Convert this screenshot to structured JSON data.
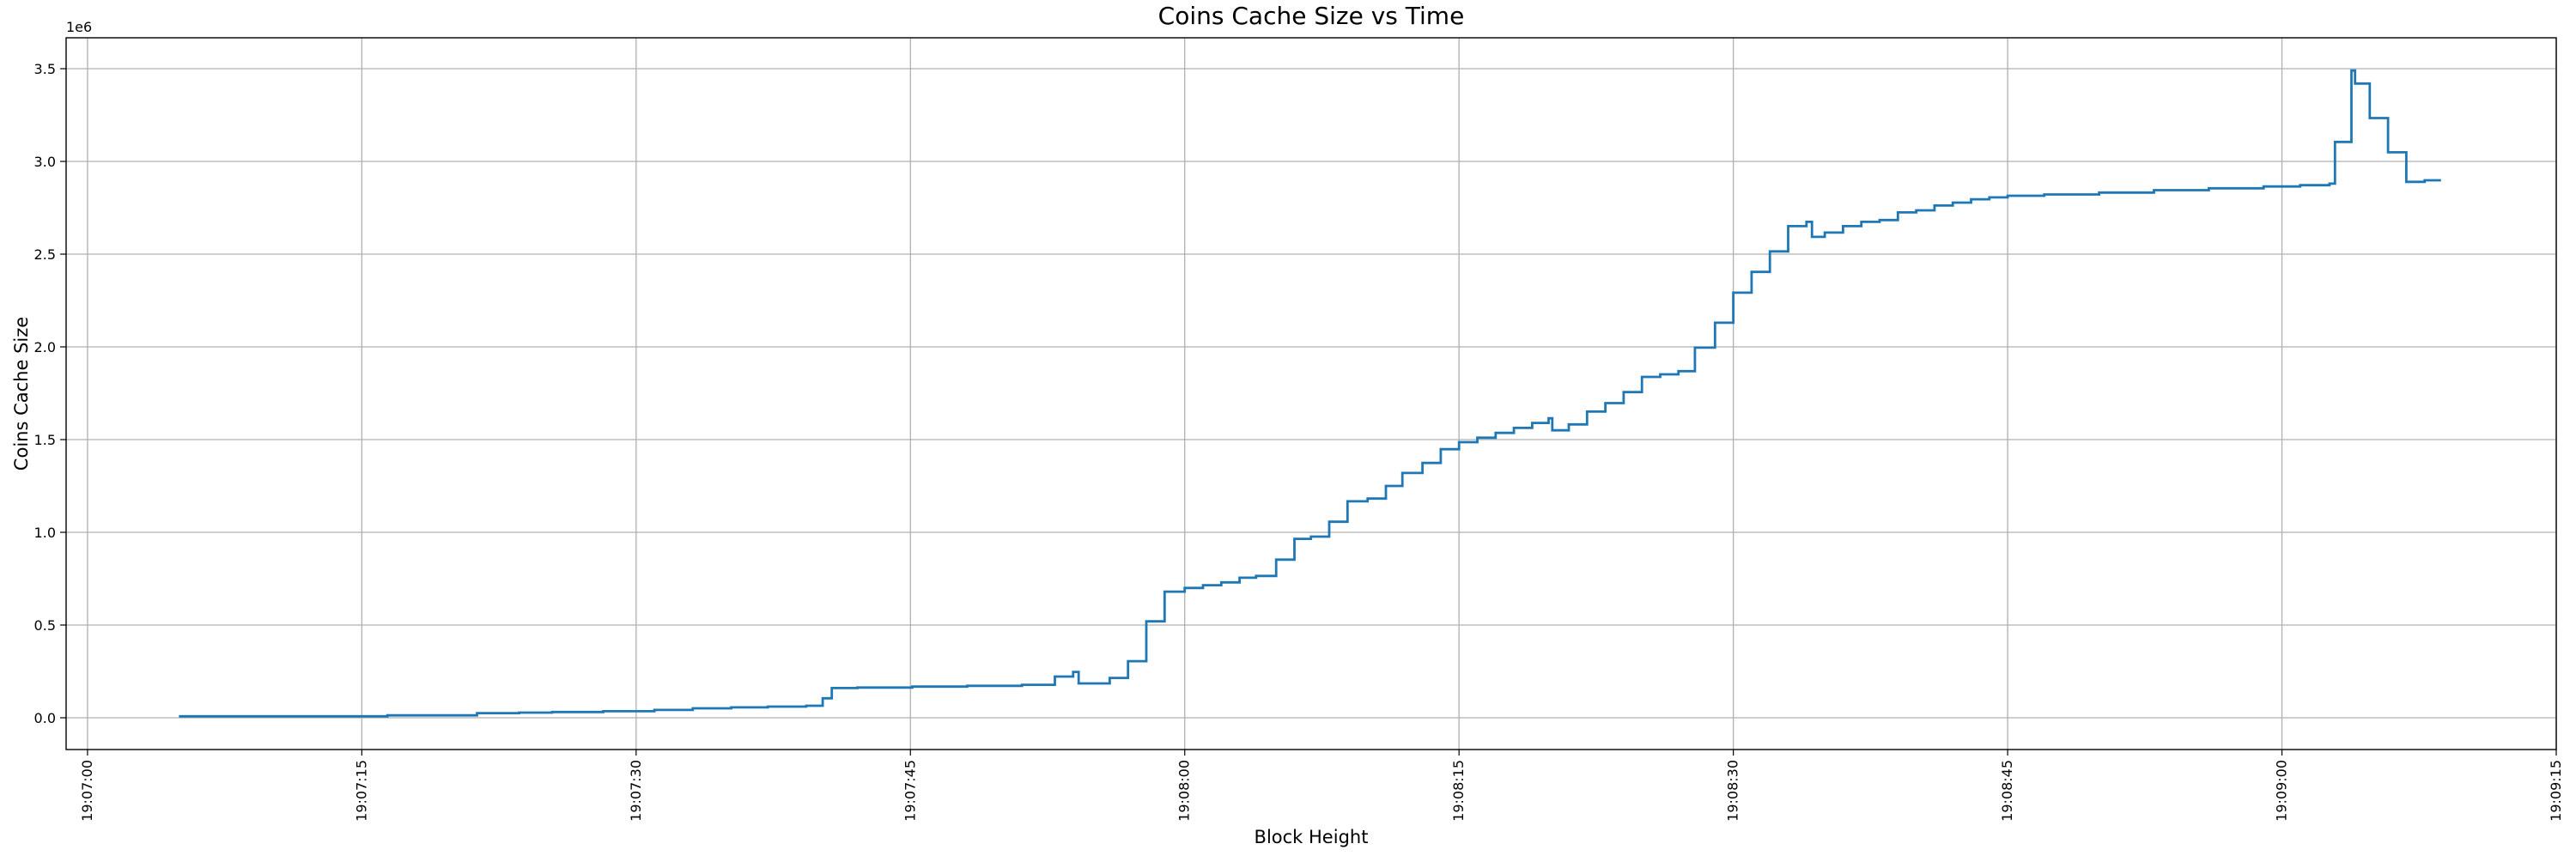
{
  "chart_data": {
    "type": "line",
    "subtype": "step-post",
    "title": "Coins Cache Size vs Time",
    "xlabel": "Block Height",
    "ylabel": "Coins Cache Size",
    "y_offset_label": "1e6",
    "line_color": "#1f77b4",
    "grid_color": "#b0b0b0",
    "spine_color": "#000000",
    "grid": true,
    "legend": false,
    "xlim_seconds": [
      -1.17,
      135.0
    ],
    "ylim": [
      -171300,
      3666700
    ],
    "x_ticks": [
      {
        "t": 0,
        "label": "19:07:00"
      },
      {
        "t": 15,
        "label": "19:07:15"
      },
      {
        "t": 30,
        "label": "19:07:30"
      },
      {
        "t": 45,
        "label": "19:07:45"
      },
      {
        "t": 60,
        "label": "19:08:00"
      },
      {
        "t": 75,
        "label": "19:08:15"
      },
      {
        "t": 90,
        "label": "19:08:30"
      },
      {
        "t": 105,
        "label": "19:08:45"
      },
      {
        "t": 120,
        "label": "19:09:00"
      },
      {
        "t": 135,
        "label": "19:09:15"
      }
    ],
    "y_ticks": [
      {
        "v": 0,
        "label": "0.0"
      },
      {
        "v": 500000,
        "label": "0.5"
      },
      {
        "v": 1000000,
        "label": "1.0"
      },
      {
        "v": 1500000,
        "label": "1.5"
      },
      {
        "v": 2000000,
        "label": "2.0"
      },
      {
        "v": 2500000,
        "label": "2.5"
      },
      {
        "v": 3000000,
        "label": "3.0"
      },
      {
        "v": 3500000,
        "label": "3.5"
      }
    ],
    "series": [
      {
        "name": "coins_cache_size",
        "step_points_t_value": [
          [
            5.0,
            8000
          ],
          [
            16.4,
            13000
          ],
          [
            21.3,
            25000
          ],
          [
            23.6,
            28000
          ],
          [
            25.4,
            31000
          ],
          [
            28.2,
            35000
          ],
          [
            31.0,
            42000
          ],
          [
            33.1,
            51000
          ],
          [
            35.2,
            56000
          ],
          [
            37.2,
            60000
          ],
          [
            39.3,
            65000
          ],
          [
            40.2,
            105000
          ],
          [
            40.7,
            160000
          ],
          [
            42.1,
            163000
          ],
          [
            45.1,
            168000
          ],
          [
            48.1,
            172000
          ],
          [
            51.1,
            178000
          ],
          [
            52.9,
            222000
          ],
          [
            53.9,
            247000
          ],
          [
            54.2,
            185000
          ],
          [
            55.9,
            215000
          ],
          [
            56.9,
            305000
          ],
          [
            57.9,
            520000
          ],
          [
            58.9,
            680000
          ],
          [
            60.0,
            700000
          ],
          [
            61.0,
            715000
          ],
          [
            62.0,
            730000
          ],
          [
            63.0,
            755000
          ],
          [
            63.9,
            765000
          ],
          [
            65.0,
            853000
          ],
          [
            66.0,
            965000
          ],
          [
            66.9,
            977000
          ],
          [
            67.9,
            1057000
          ],
          [
            68.9,
            1167000
          ],
          [
            70.0,
            1182000
          ],
          [
            71.0,
            1250000
          ],
          [
            71.9,
            1320000
          ],
          [
            73.0,
            1374000
          ],
          [
            74.0,
            1448000
          ],
          [
            75.0,
            1486000
          ],
          [
            76.0,
            1510000
          ],
          [
            77.0,
            1536000
          ],
          [
            78.0,
            1563000
          ],
          [
            79.0,
            1590000
          ],
          [
            79.9,
            1615000
          ],
          [
            80.1,
            1550000
          ],
          [
            81.0,
            1582000
          ],
          [
            82.0,
            1651000
          ],
          [
            83.0,
            1697000
          ],
          [
            84.0,
            1756000
          ],
          [
            85.0,
            1838000
          ],
          [
            86.0,
            1852000
          ],
          [
            87.0,
            1869000
          ],
          [
            87.9,
            1996000
          ],
          [
            89.0,
            2130000
          ],
          [
            90.0,
            2292000
          ],
          [
            91.0,
            2404000
          ],
          [
            92.0,
            2515000
          ],
          [
            93.0,
            2651000
          ],
          [
            94.0,
            2674000
          ],
          [
            94.3,
            2593000
          ],
          [
            95.0,
            2616000
          ],
          [
            96.0,
            2651000
          ],
          [
            97.0,
            2674000
          ],
          [
            98.0,
            2684000
          ],
          [
            99.0,
            2725000
          ],
          [
            100.0,
            2736000
          ],
          [
            101.0,
            2762000
          ],
          [
            102.0,
            2778000
          ],
          [
            103.0,
            2796000
          ],
          [
            104.0,
            2806000
          ],
          [
            105.0,
            2815000
          ],
          [
            107.0,
            2822000
          ],
          [
            110.0,
            2832000
          ],
          [
            113.0,
            2845000
          ],
          [
            116.0,
            2855000
          ],
          [
            119.0,
            2865000
          ],
          [
            121.0,
            2872000
          ],
          [
            122.6,
            2880000
          ],
          [
            122.9,
            3105000
          ],
          [
            123.8,
            3490000
          ],
          [
            124.0,
            3420000
          ],
          [
            124.8,
            3234000
          ],
          [
            125.8,
            3049000
          ],
          [
            126.8,
            2890000
          ],
          [
            127.8,
            2898000
          ],
          [
            128.7,
            2898000
          ]
        ]
      }
    ]
  }
}
